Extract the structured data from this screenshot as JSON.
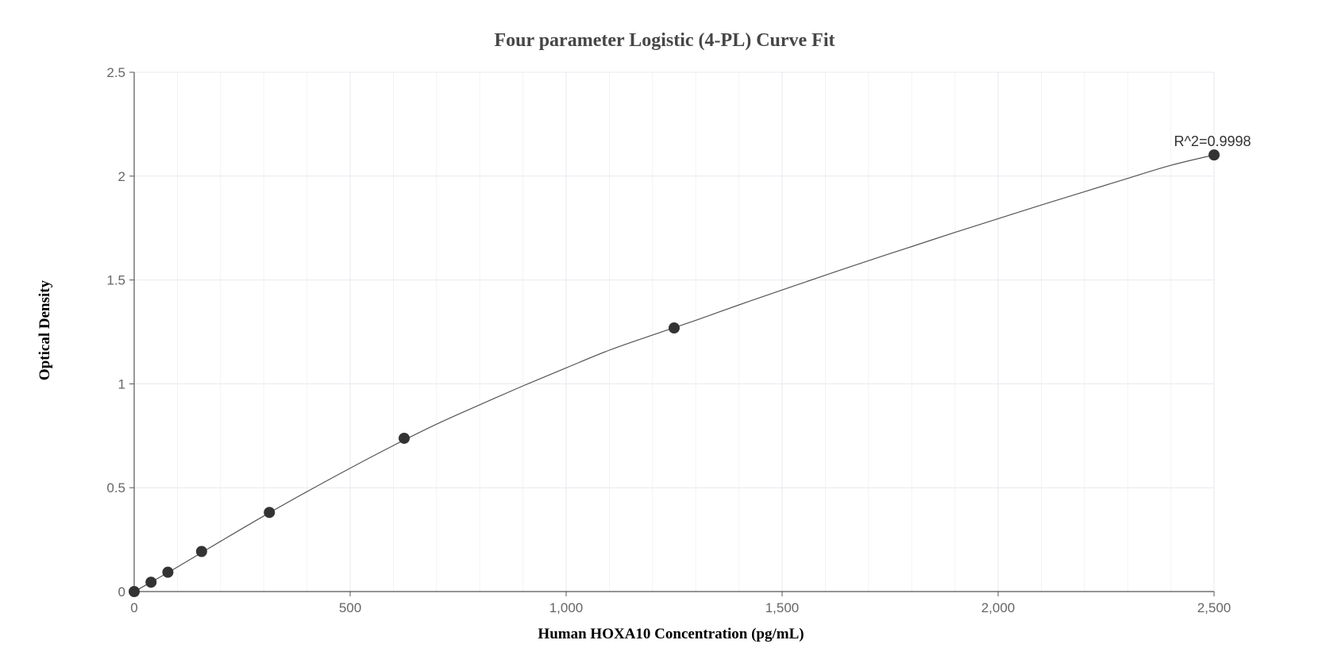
{
  "chart_data": {
    "type": "scatter",
    "title": "Four parameter Logistic (4-PL) Curve Fit",
    "xlabel": "Human HOXA10 Concentration (pg/mL)",
    "ylabel": "Optical Density",
    "xlim": [
      0,
      2500
    ],
    "ylim": [
      0,
      2.5
    ],
    "x_ticks": [
      0,
      500,
      1000,
      1500,
      2000,
      2500
    ],
    "x_tick_labels": [
      "0",
      "500",
      "1,000",
      "1,500",
      "2,000",
      "2,500"
    ],
    "x_minor_step": 100,
    "y_ticks": [
      0,
      0.5,
      1,
      1.5,
      2,
      2.5
    ],
    "y_tick_labels": [
      "0",
      "0.5",
      "1",
      "1.5",
      "2",
      "2.5"
    ],
    "grid": true,
    "series": [
      {
        "points": [
          {
            "x": 0,
            "y": 0
          },
          {
            "x": 39,
            "y": 0.045
          },
          {
            "x": 78,
            "y": 0.093
          },
          {
            "x": 156,
            "y": 0.193
          },
          {
            "x": 313,
            "y": 0.381
          },
          {
            "x": 625,
            "y": 0.738
          },
          {
            "x": 1250,
            "y": 1.269
          },
          {
            "x": 2500,
            "y": 2.102
          }
        ]
      }
    ],
    "fit_curve": {
      "model": "4PL",
      "x": [
        0,
        50,
        100,
        200,
        300,
        400,
        500,
        600,
        700,
        800,
        900,
        1000,
        1100,
        1200,
        1300,
        1400,
        1500,
        1600,
        1700,
        1800,
        1900,
        2000,
        2100,
        2200,
        2300,
        2400,
        2500
      ],
      "y": [
        0,
        0.058,
        0.118,
        0.242,
        0.364,
        0.481,
        0.594,
        0.703,
        0.806,
        0.899,
        0.99,
        1.077,
        1.162,
        1.235,
        1.306,
        1.38,
        1.452,
        1.523,
        1.593,
        1.661,
        1.729,
        1.795,
        1.861,
        1.925,
        1.989,
        2.052,
        2.102
      ]
    },
    "annotations": [
      {
        "text": "R^2=0.9998",
        "x": 2500,
        "y": 2.102
      }
    ],
    "colors": {
      "point": "#333333",
      "curve": "#555555",
      "grid": "#e6e9ef",
      "axis": "#555555"
    }
  }
}
